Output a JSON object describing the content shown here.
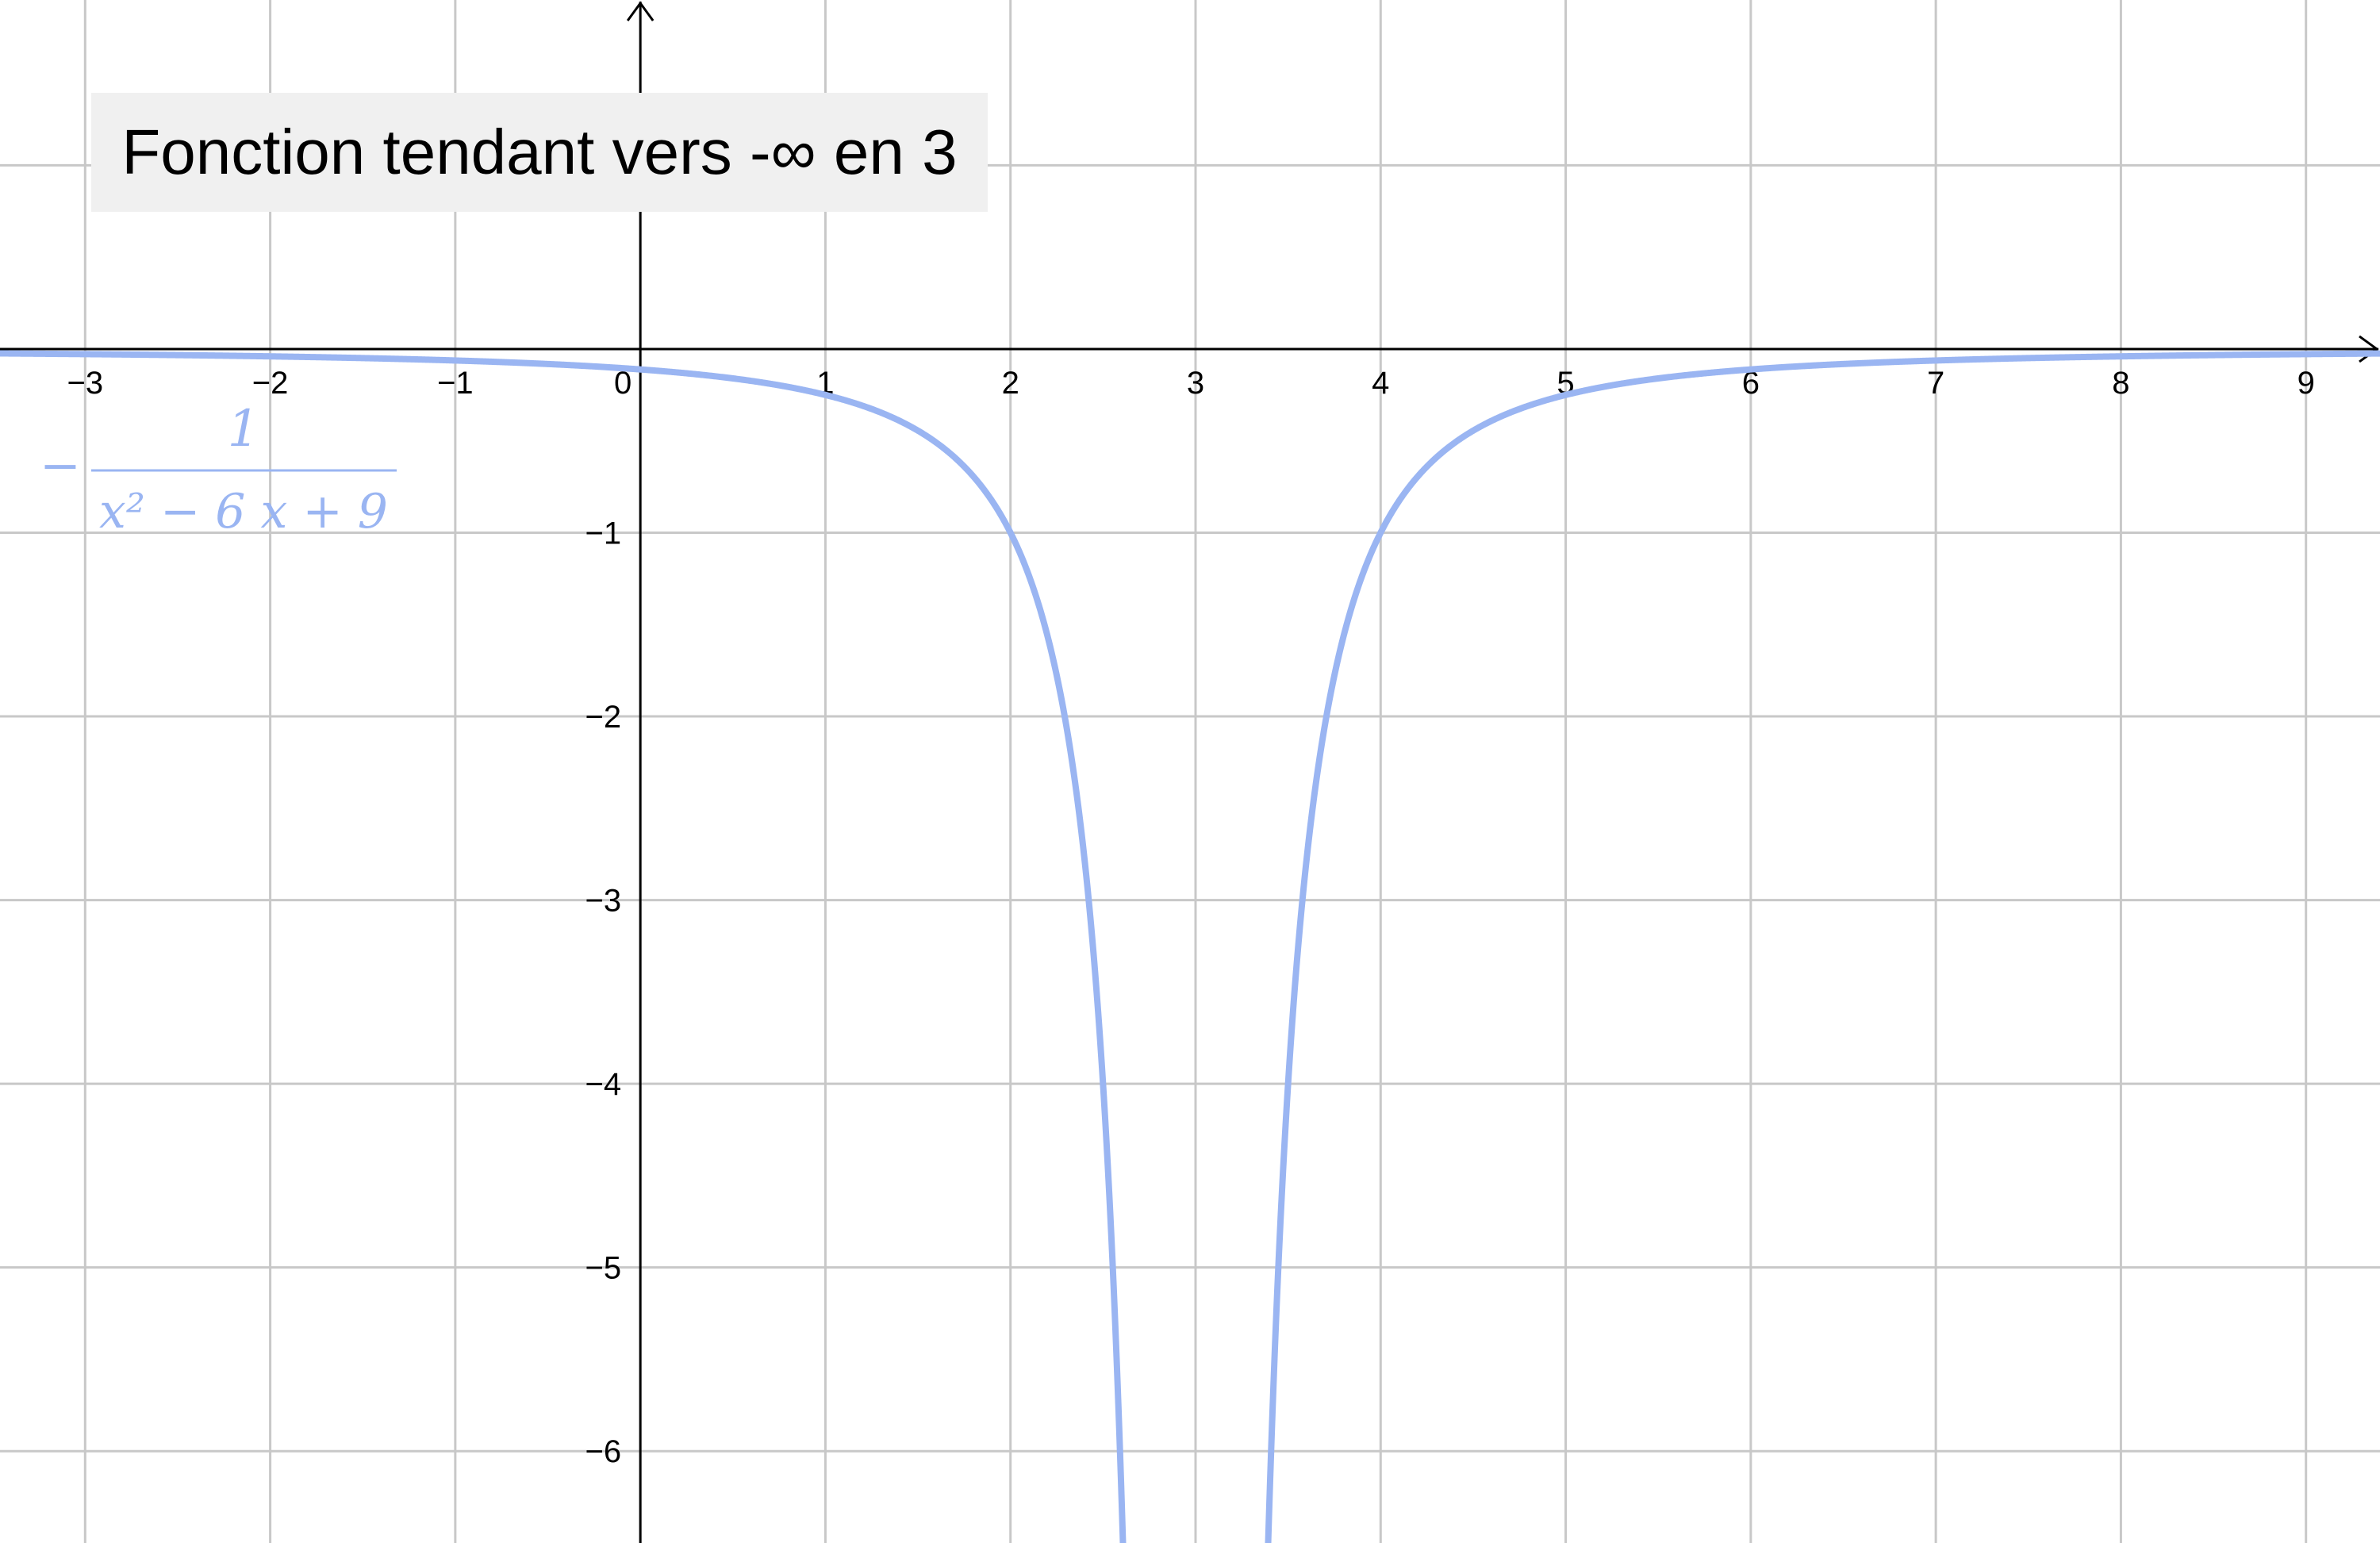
{
  "chart_data": {
    "type": "line",
    "title": "Fonction tendant vers -∞ en 3",
    "function": {
      "label_parts": {
        "minus": "−",
        "numerator": "1",
        "denominator": "x² − 6 x + 9"
      },
      "color": "#9ab5f2"
    },
    "asymptote_x": 3,
    "xlim": [
      -3.46,
      9.4
    ],
    "ylim": [
      -6.5,
      1.9
    ],
    "x_ticks": [
      -3,
      -2,
      -1,
      0,
      1,
      2,
      3,
      4,
      5,
      6,
      7,
      8,
      9
    ],
    "y_ticks": [
      -6,
      -5,
      -4,
      -3,
      -2,
      -1
    ],
    "x_tick_labels": [
      "−3",
      "−2",
      "−1",
      "0",
      "1",
      "2",
      "3",
      "4",
      "5",
      "6",
      "7",
      "8",
      "9"
    ],
    "y_tick_labels": [
      "−6",
      "−5",
      "−4",
      "−3",
      "−2",
      "−1"
    ],
    "grid": true,
    "axes_color": "#000000",
    "grid_color": "#c8c8c8"
  }
}
